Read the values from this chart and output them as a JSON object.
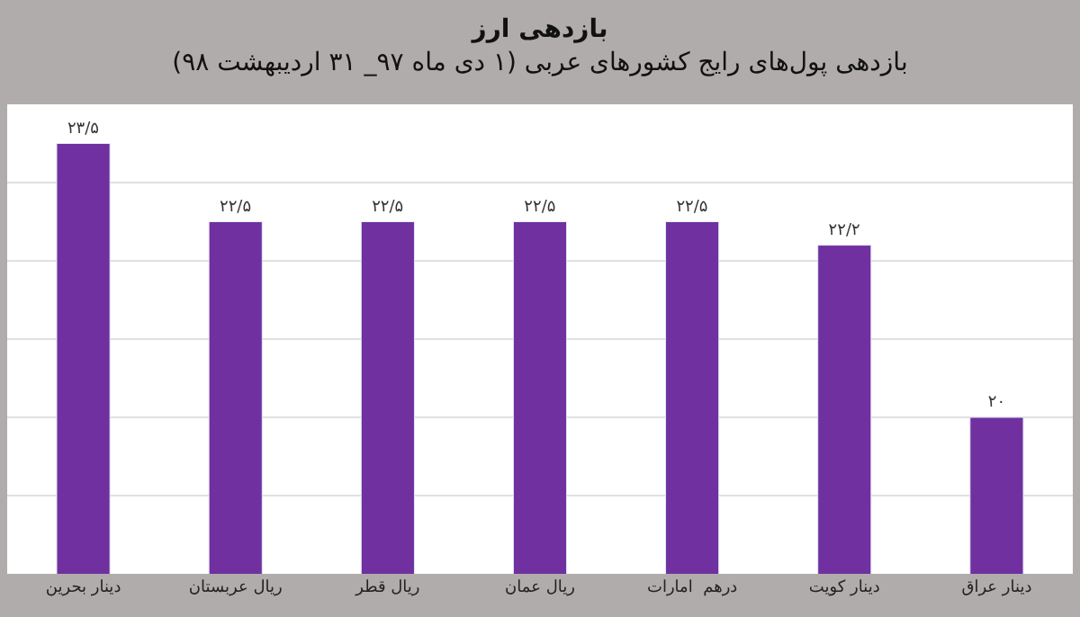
{
  "chart_data": {
    "type": "bar",
    "title": "بازدهی ارز",
    "subtitle": "بازدهی پول‌های رایج کشورهای عربی (۱ دی ماه ۹۷_ ۳۱ اردیبهشت ۹۸)",
    "categories": [
      "دینار بحرین",
      "ریال عربستان",
      "ریال قطر",
      "ریال عمان",
      "درهم  امارات",
      "دینار کویت",
      "دینار عراق"
    ],
    "values": [
      23.5,
      22.5,
      22.5,
      22.5,
      22.5,
      22.2,
      20
    ],
    "value_labels": [
      "۲۳/۵",
      "۲۲/۵",
      "۲۲/۵",
      "۲۲/۵",
      "۲۲/۵",
      "۲۲/۲",
      "۲۰"
    ],
    "color": "#7030a0",
    "ylim": [
      18,
      24
    ],
    "yticks": [
      {
        "value": 18,
        "label": null
      },
      {
        "value": 19,
        "label": null
      },
      {
        "value": 20,
        "label": null
      },
      {
        "value": 21,
        "label": null
      },
      {
        "value": 22,
        "label": null
      },
      {
        "value": 23,
        "label": null
      },
      {
        "value": 24,
        "label": null
      }
    ],
    "grid": "y",
    "tick_labels": "x"
  }
}
